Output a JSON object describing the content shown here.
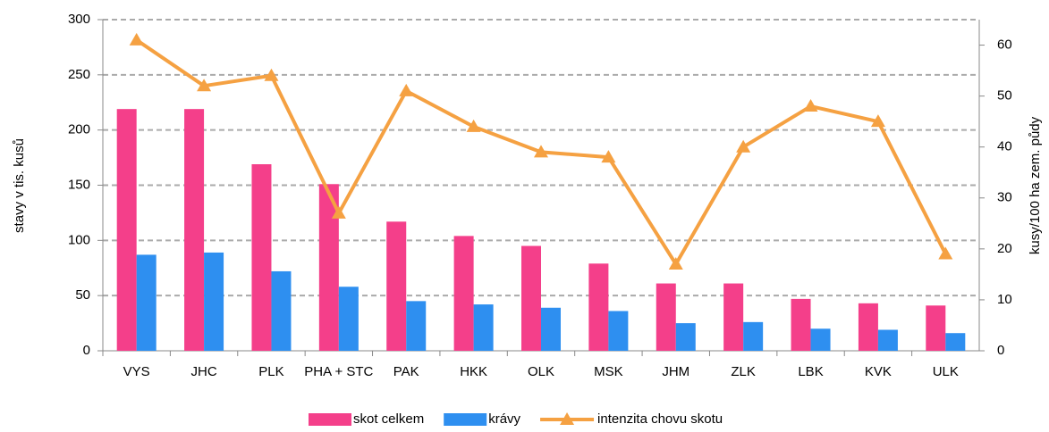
{
  "chart_data": {
    "type": "bar",
    "categories": [
      "VYS",
      "JHC",
      "PLK",
      "PHA + STC",
      "PAK",
      "HKK",
      "OLK",
      "MSK",
      "JHM",
      "ZLK",
      "LBK",
      "KVK",
      "ULK"
    ],
    "y_label": "stavy v tis. kusů",
    "y2_label": "kusy/100 ha zem. půdy",
    "series": [
      {
        "name": "skot celkem",
        "color": "#f43f8a",
        "values": [
          219,
          219,
          169,
          151,
          117,
          104,
          95,
          79,
          61,
          61,
          47,
          43,
          41
        ]
      },
      {
        "name": "krávy",
        "color": "#2e8ff0",
        "values": [
          87,
          89,
          72,
          58,
          45,
          42,
          39,
          36,
          25,
          26,
          20,
          19,
          16
        ]
      },
      {
        "name": "intenzita chovu skotu",
        "color": "#f5a142",
        "type": "line",
        "axis": "y2",
        "values": [
          61,
          52,
          54,
          27,
          51,
          44,
          39,
          38,
          17,
          40,
          48,
          45,
          19
        ]
      }
    ],
    "ylim": [
      0,
      300
    ],
    "yticks": [
      0,
      50,
      100,
      150,
      200,
      250,
      300
    ],
    "y2lim": [
      0,
      65
    ],
    "y2ticks": [
      0,
      10,
      20,
      30,
      40,
      50,
      60
    ],
    "grid": true,
    "legend": "bottom"
  }
}
